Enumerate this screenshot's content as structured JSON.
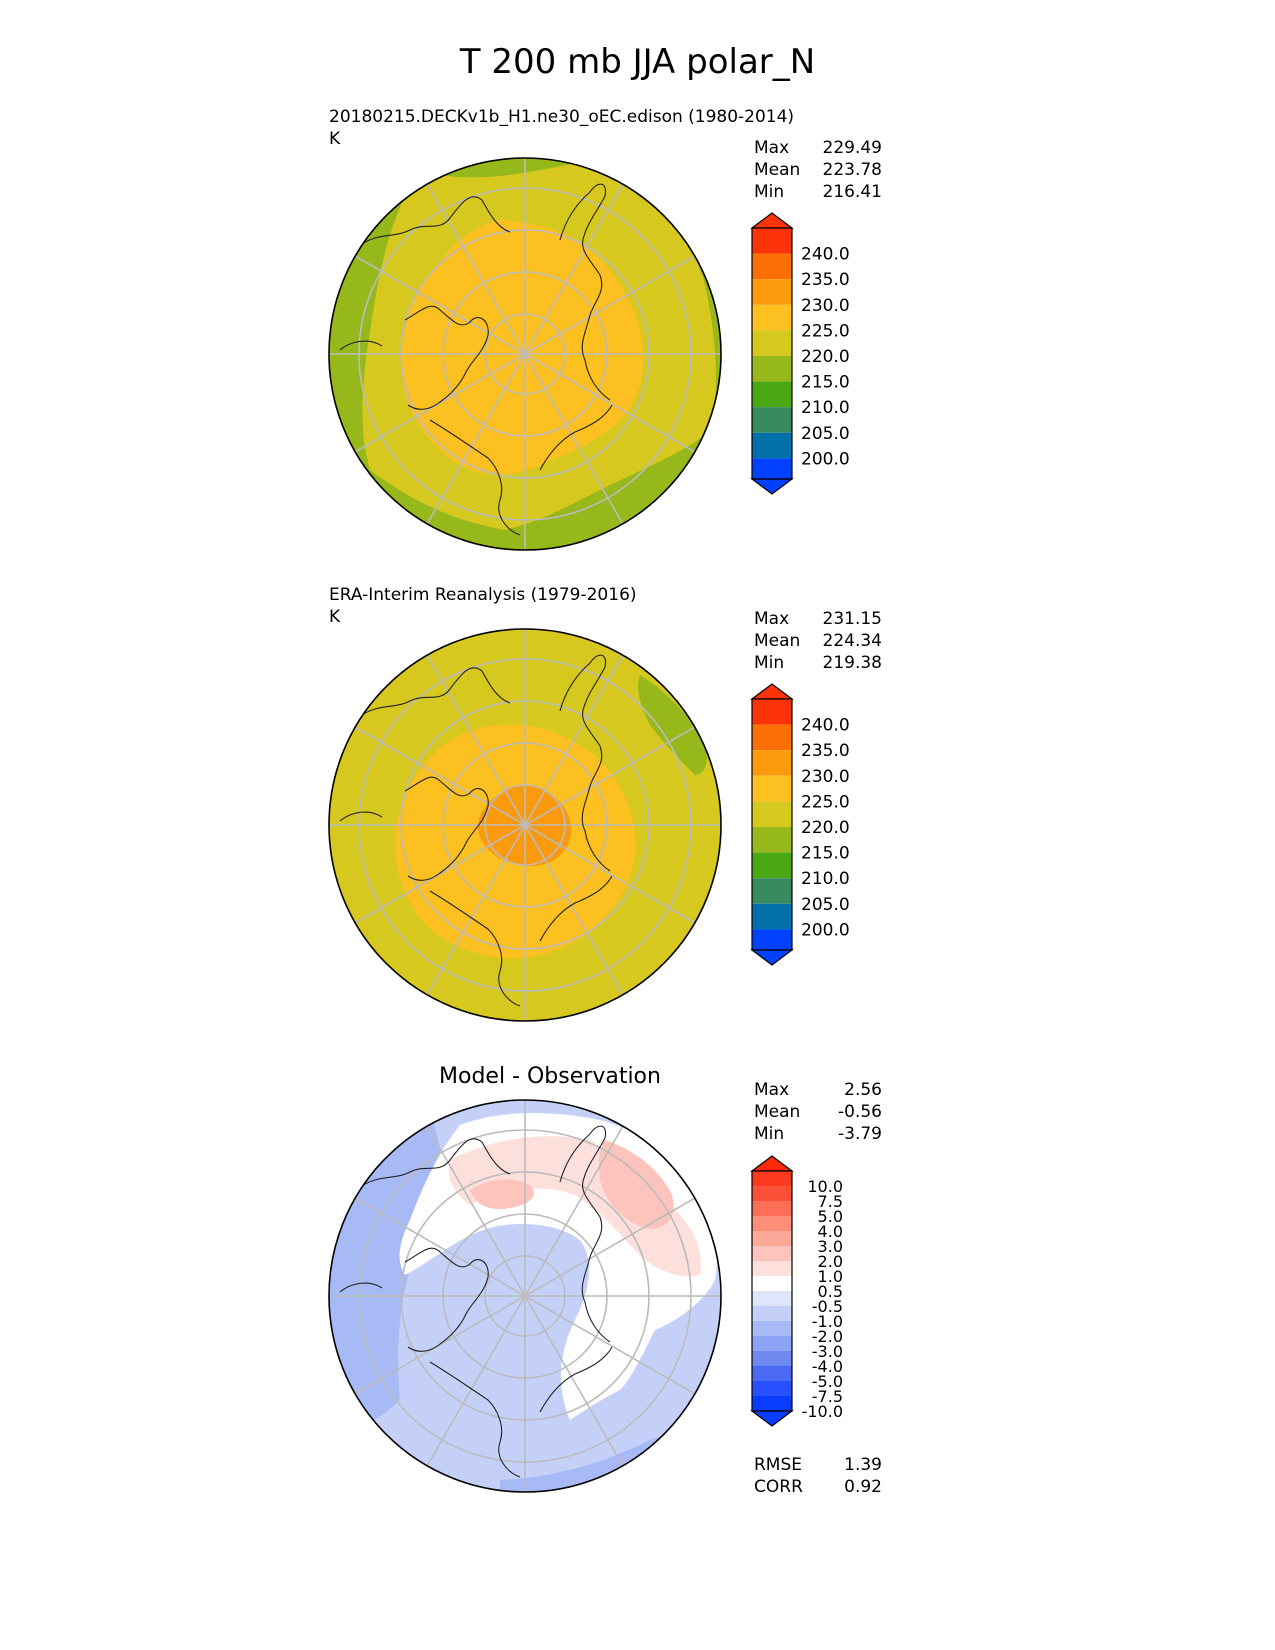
{
  "title": "T 200 mb JJA polar_N",
  "panels": [
    {
      "title": "20180215.DECKv1b_H1.ne30_oEC.edison (1980-2014)",
      "units": "K",
      "stats": [
        {
          "label": "Max",
          "value": "229.49"
        },
        {
          "label": "Mean",
          "value": "223.78"
        },
        {
          "label": "Min",
          "value": "216.41"
        }
      ]
    },
    {
      "title": "ERA-Interim Reanalysis (1979-2016)",
      "units": "K",
      "stats": [
        {
          "label": "Max",
          "value": "231.15"
        },
        {
          "label": "Mean",
          "value": "224.34"
        },
        {
          "label": "Min",
          "value": "219.38"
        }
      ]
    },
    {
      "title": "Model - Observation",
      "stats": [
        {
          "label": "Max",
          "value": "2.56"
        },
        {
          "label": "Mean",
          "value": "-0.56"
        },
        {
          "label": "Min",
          "value": "-3.79"
        }
      ],
      "metrics": [
        {
          "label": "RMSE",
          "value": "1.39"
        },
        {
          "label": "CORR",
          "value": "0.92"
        }
      ]
    }
  ],
  "chart_data": [
    {
      "type": "heatmap",
      "projection": "north polar stereographic",
      "variable": "T 200 mb",
      "colorbar": {
        "levels": [
          "200.0",
          "205.0",
          "210.0",
          "215.0",
          "220.0",
          "225.0",
          "230.0",
          "235.0",
          "240.0"
        ],
        "colors": [
          "#0040ff",
          "#0070a8",
          "#3a8a60",
          "#4aa814",
          "#96b81a",
          "#d6c81e",
          "#fcc020",
          "#fc9a0e",
          "#fc6e06",
          "#fc3208"
        ],
        "extend": "both"
      },
      "field_regions": [
        {
          "range": "215-220",
          "color": "#96b81a",
          "where": "outer rim toward Pacific and Atlantic"
        },
        {
          "range": "220-225",
          "color": "#d6c81e",
          "where": "mid latitudes"
        },
        {
          "range": "225-230",
          "color": "#fcc020",
          "where": "polar cap"
        }
      ]
    },
    {
      "type": "heatmap",
      "projection": "north polar stereographic",
      "variable": "T 200 mb",
      "colorbar": {
        "levels": [
          "200.0",
          "205.0",
          "210.0",
          "215.0",
          "220.0",
          "225.0",
          "230.0",
          "235.0",
          "240.0"
        ],
        "colors": [
          "#0040ff",
          "#0070a8",
          "#3a8a60",
          "#4aa814",
          "#96b81a",
          "#d6c81e",
          "#fcc020",
          "#fc9a0e",
          "#fc6e06",
          "#fc3208"
        ],
        "extend": "both"
      },
      "field_regions": [
        {
          "range": "215-220",
          "color": "#96b81a",
          "where": "small patch upper right"
        },
        {
          "range": "220-225",
          "color": "#d6c81e",
          "where": "mid latitudes"
        },
        {
          "range": "225-230",
          "color": "#fcc020",
          "where": "polar cap"
        },
        {
          "range": "230-235",
          "color": "#fc9a0e",
          "where": "near the pole"
        }
      ]
    },
    {
      "type": "heatmap",
      "projection": "north polar stereographic",
      "variable": "Model - Observation",
      "colorbar": {
        "levels": [
          "-10.0",
          "-7.5",
          "-5.0",
          "-4.0",
          "-3.0",
          "-2.0",
          "-1.0",
          "-0.5",
          "0.5",
          "1.0",
          "2.0",
          "3.0",
          "4.0",
          "5.0",
          "7.5",
          "10.0"
        ],
        "colors": [
          "#0a3cff",
          "#2850ff",
          "#4a6af4",
          "#6e88f0",
          "#8ca2f4",
          "#a8baf6",
          "#c4d0f8",
          "#dfe6fb",
          "#ffffff",
          "#fde0dc",
          "#fcc4bc",
          "#fca898",
          "#fc8e7a",
          "#fc6e58",
          "#fc5038",
          "#fc3a20",
          "#fc2808"
        ],
        "extend": "both"
      },
      "field_regions": [
        {
          "range": "1.0-2.0",
          "color": "#fcc4bc",
          "where": "upper right sector"
        },
        {
          "range": "-0.5-0.5",
          "color": "#ffffff",
          "where": "central band"
        },
        {
          "range": "-1.0--0.5",
          "color": "#c4d0f8",
          "where": "polar cap and lower half"
        },
        {
          "range": "-2.0--1.0",
          "color": "#a8baf6",
          "where": "left rim"
        }
      ]
    }
  ]
}
